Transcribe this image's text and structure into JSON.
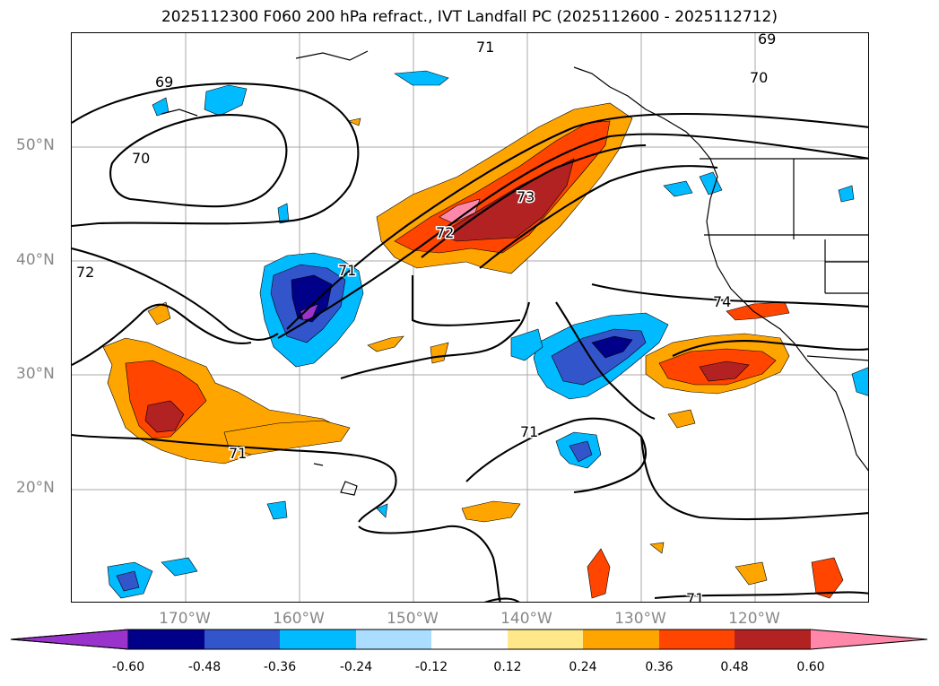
{
  "title": "2025112300 F060 200 hPa refract., IVT Landfall PC (2025112600 - 2025112712)",
  "lat_labels": [
    "50°N",
    "40°N",
    "30°N",
    "20°N"
  ],
  "lon_labels": [
    "170°W",
    "160°W",
    "150°W",
    "140°W",
    "130°W",
    "120°W"
  ],
  "contour_labels": [
    "69",
    "70",
    "69",
    "71",
    "70",
    "72",
    "72",
    "73",
    "71",
    "74",
    "71",
    "71",
    "71"
  ],
  "colorbar": {
    "tick_labels": [
      "-0.60",
      "-0.48",
      "-0.36",
      "-0.24",
      "-0.12",
      "0.12",
      "0.24",
      "0.36",
      "0.48",
      "0.60"
    ],
    "colors": [
      "#9933cc",
      "#000088",
      "#3355cc",
      "#00bbff",
      "#aaddff",
      "#ffffff",
      "#ffe88a",
      "#ffa500",
      "#ff4500",
      "#b22222",
      "#ff88aa",
      "#ff88aa"
    ]
  },
  "colors": {
    "pos1": "#ffa500",
    "pos2": "#ff4500",
    "pos3": "#b22222",
    "pos4": "#ff88aa",
    "neg1": "#00bbff",
    "neg2": "#3355cc",
    "neg3": "#000088",
    "neg4": "#9933cc"
  }
}
